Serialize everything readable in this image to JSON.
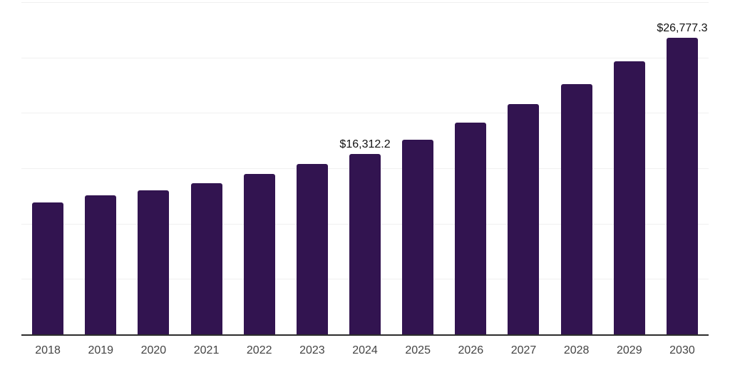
{
  "chart_data": {
    "type": "bar",
    "title": "",
    "xlabel": "",
    "ylabel": "",
    "categories": [
      "2018",
      "2019",
      "2020",
      "2021",
      "2022",
      "2023",
      "2024",
      "2025",
      "2026",
      "2027",
      "2028",
      "2029",
      "2030"
    ],
    "values": [
      11900,
      12580,
      13030,
      13650,
      14480,
      15420,
      16312.2,
      17610,
      19100,
      20770,
      22580,
      24650,
      26777.3
    ],
    "data_labels": {
      "2024": "$16,312.2",
      "2030": "$26,777.3"
    },
    "ylim": [
      0,
      30000
    ],
    "gridline_step": 5000,
    "grid": true,
    "legend": false,
    "colors": {
      "bar": "#321450",
      "gridline": "#f0f0f0",
      "axis_line": "#2d2d2d",
      "tick_label": "#444444",
      "data_label": "#111111",
      "background": "#ffffff"
    }
  }
}
